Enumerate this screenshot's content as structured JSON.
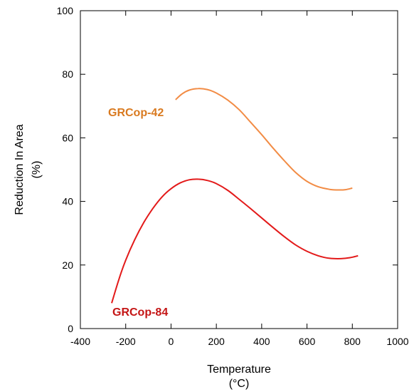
{
  "chart_data": {
    "type": "line",
    "title": "",
    "xlabel": [
      "Temperature",
      "(°C)"
    ],
    "ylabel": [
      "Reduction In Area",
      "(%)"
    ],
    "xlim": [
      -400,
      1000
    ],
    "ylim": [
      0,
      100
    ],
    "xticks": [
      -400,
      -200,
      0,
      200,
      400,
      600,
      800,
      1000
    ],
    "yticks": [
      0,
      20,
      40,
      60,
      80,
      100
    ],
    "grid": false,
    "series": [
      {
        "name": "GRCop-42",
        "color": "#f28c45",
        "label_color": "#d97a20",
        "x": [
          20,
          50,
          80,
          120,
          160,
          200,
          250,
          300,
          350,
          400,
          450,
          500,
          550,
          600,
          650,
          700,
          740,
          770,
          800
        ],
        "y": [
          72.0,
          73.9,
          75.0,
          75.5,
          75.2,
          74.1,
          71.9,
          68.9,
          65.0,
          61.0,
          56.8,
          52.8,
          49.1,
          46.3,
          44.6,
          43.8,
          43.6,
          43.7,
          44.2
        ]
      },
      {
        "name": "GRCop-84",
        "color": "#e31a1a",
        "label_color": "#c41515",
        "x": [
          -262,
          -230,
          -200,
          -160,
          -120,
          -80,
          -40,
          0,
          40,
          80,
          120,
          160,
          200,
          250,
          300,
          350,
          400,
          450,
          500,
          550,
          600,
          650,
          700,
          750,
          790,
          825
        ],
        "y": [
          8.0,
          15.5,
          21.5,
          28.0,
          33.4,
          37.8,
          41.4,
          44.0,
          45.8,
          46.8,
          47.0,
          46.6,
          45.6,
          43.5,
          40.7,
          37.8,
          34.8,
          31.8,
          28.9,
          26.3,
          24.3,
          22.9,
          22.1,
          22.0,
          22.3,
          22.9
        ]
      }
    ]
  }
}
